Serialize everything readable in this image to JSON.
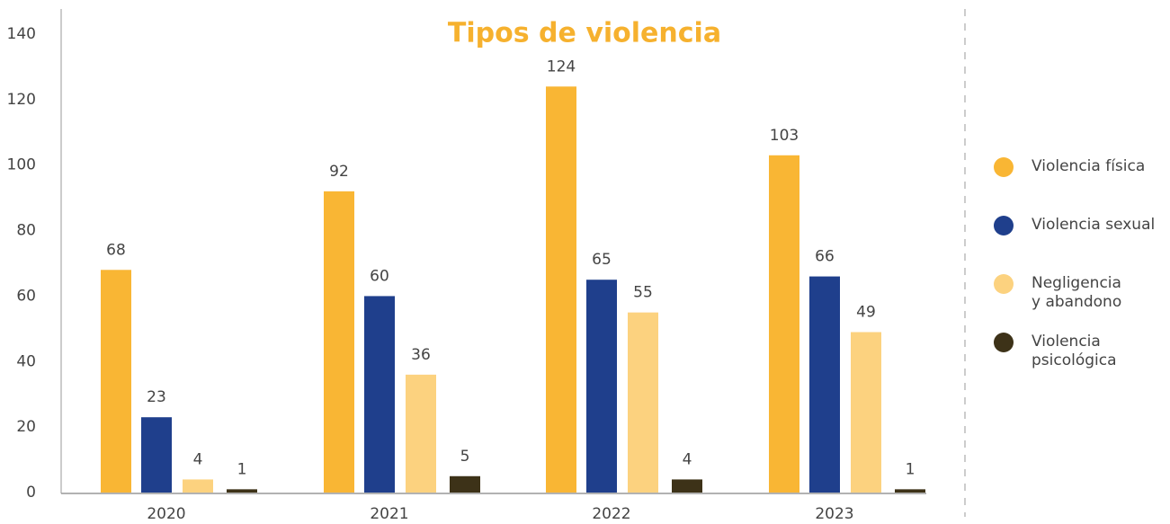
{
  "chart_data": {
    "type": "bar",
    "title": "Tipos de violencia",
    "categories": [
      "2020",
      "2021",
      "2022",
      "2023"
    ],
    "series": [
      {
        "name": "Violencia física",
        "color": "#F9B634",
        "values": [
          68,
          92,
          124,
          103
        ]
      },
      {
        "name": "Violencia sexual",
        "color": "#1F3F8C",
        "values": [
          23,
          60,
          65,
          66
        ]
      },
      {
        "name": "Negligencia\ny abandono",
        "color": "#FCD27F",
        "values": [
          4,
          36,
          55,
          49
        ]
      },
      {
        "name": "Violencia\npsicológica",
        "color": "#3D3218",
        "values": [
          1,
          5,
          4,
          1
        ]
      }
    ],
    "ylim": [
      0,
      140
    ],
    "yticks": [
      0,
      20,
      40,
      60,
      80,
      100,
      120,
      140
    ],
    "grid": false,
    "legend": "right"
  }
}
